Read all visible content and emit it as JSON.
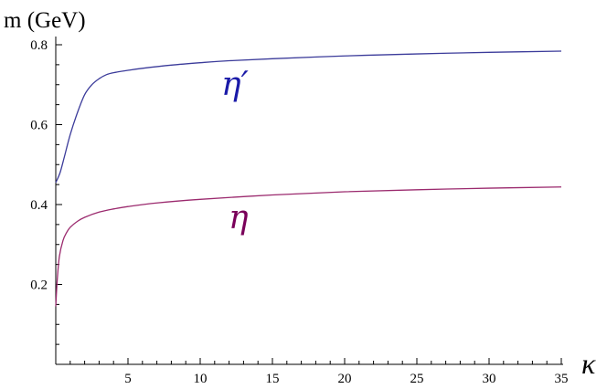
{
  "chart_data": {
    "type": "line",
    "ylabel": "m (GeV)",
    "xlabel": "κ",
    "xlim": [
      0,
      35
    ],
    "ylim": [
      0.0,
      0.8
    ],
    "x_ticks": [
      5,
      10,
      15,
      20,
      25,
      30,
      35
    ],
    "x_tick_labels": [
      "5",
      "10",
      "15",
      "20",
      "25",
      "30",
      "35"
    ],
    "y_ticks": [
      0.2,
      0.4,
      0.6,
      0.8
    ],
    "y_tick_labels": [
      "0.2",
      "0.4",
      "0.6",
      "0.8"
    ],
    "grid": false,
    "series": [
      {
        "name": "η′",
        "color": "#3b3b9a",
        "label_color": "#1a1aa8",
        "x": [
          0,
          0.3,
          0.6,
          1.0,
          1.5,
          2.0,
          2.5,
          3.0,
          3.5,
          4,
          5,
          6,
          8,
          10,
          12,
          15,
          20,
          25,
          30,
          35
        ],
        "y": [
          0.455,
          0.48,
          0.52,
          0.575,
          0.63,
          0.675,
          0.7,
          0.715,
          0.725,
          0.73,
          0.736,
          0.741,
          0.749,
          0.755,
          0.76,
          0.765,
          0.772,
          0.777,
          0.781,
          0.784
        ]
      },
      {
        "name": "η",
        "color": "#9b2a6e",
        "label_color": "#7a005a",
        "x": [
          0,
          0.1,
          0.25,
          0.5,
          0.75,
          1.0,
          1.5,
          2,
          3,
          4,
          5,
          7,
          10,
          15,
          20,
          25,
          30,
          35
        ],
        "y": [
          0.145,
          0.21,
          0.27,
          0.31,
          0.33,
          0.343,
          0.358,
          0.368,
          0.381,
          0.389,
          0.395,
          0.404,
          0.413,
          0.424,
          0.432,
          0.437,
          0.441,
          0.444
        ]
      }
    ]
  }
}
